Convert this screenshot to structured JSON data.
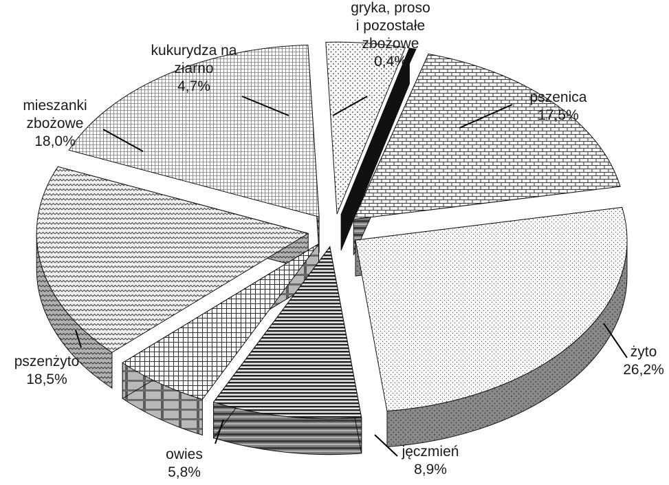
{
  "chart_data": {
    "type": "pie",
    "style": "3d-exploded",
    "title": "",
    "legend": "none",
    "categories": [
      "pszenica",
      "żyto",
      "jęczmień",
      "owies",
      "pszenżyto",
      "mieszanki zbożowe",
      "kukurydza na ziarno",
      "gryka, proso i pozostałe zbożowe"
    ],
    "values": [
      17.5,
      26.2,
      8.9,
      5.8,
      18.5,
      18.0,
      4.7,
      0.4
    ],
    "value_labels": [
      "17,5%",
      "26,2%",
      "8,9%",
      "5,8%",
      "18,5%",
      "18,0%",
      "4,7%",
      "0,4%"
    ],
    "label_lines": [
      [
        "pszenica"
      ],
      [
        "żyto"
      ],
      [
        "jęczmień"
      ],
      [
        "owies"
      ],
      [
        "pszenżyto"
      ],
      [
        "mieszanki",
        "zbożowe"
      ],
      [
        "kukurydza na",
        "ziarno"
      ],
      [
        "gryka, proso",
        "i pozostałe",
        "zbożowe"
      ]
    ],
    "slice_patterns": [
      "brick",
      "dots-fine",
      "horizontal-lines",
      "grid",
      "zigzag",
      "grid-small",
      "dots",
      "solid"
    ]
  }
}
